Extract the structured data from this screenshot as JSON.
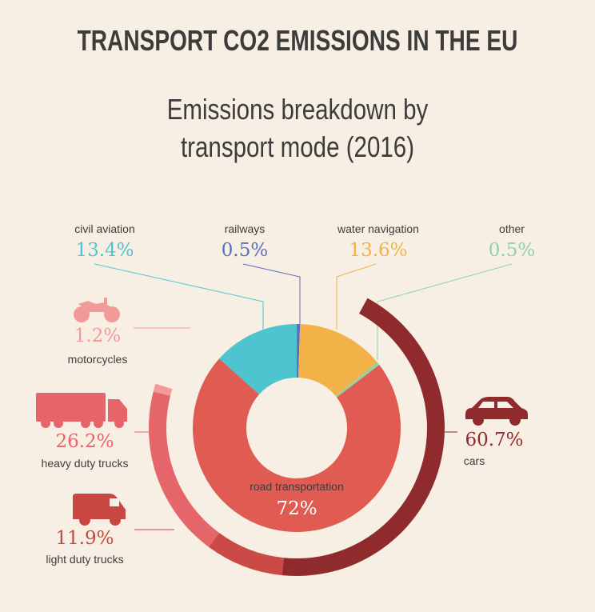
{
  "title": "TRANSPORT CO2 EMISSIONS IN THE EU",
  "subtitle_line1": "Emissions breakdown by",
  "subtitle_line2": "transport mode (2016)",
  "chart_data": [
    {
      "type": "pie",
      "title": "Emissions breakdown by transport mode (2016)",
      "categories": [
        "road transportation",
        "civil aviation",
        "railways",
        "water navigation",
        "other"
      ],
      "values": [
        72,
        13.4,
        0.5,
        13.6,
        0.5
      ],
      "value_labels": [
        "72%",
        "13.4%",
        "0.5%",
        "13.6%",
        "0.5%"
      ],
      "colors": [
        "#e05c52",
        "#4dc4cf",
        "#5b6dc2",
        "#f2b248",
        "#8bd5a6"
      ]
    },
    {
      "type": "pie",
      "title": "road transportation",
      "categories": [
        "motorcycles",
        "heavy duty trucks",
        "light duty trucks",
        "cars"
      ],
      "values": [
        1.2,
        26.2,
        11.9,
        60.7
      ],
      "value_labels": [
        "1.2%",
        "26.2%",
        "11.9%",
        "60.7%"
      ],
      "colors": [
        "#f09a9a",
        "#e5666a",
        "#cc4a45",
        "#8f2b2c"
      ]
    }
  ],
  "icons": {
    "motorcycle": "motorcycle-icon",
    "heavy_truck": "heavy-truck-icon",
    "light_truck": "van-icon",
    "car": "car-icon"
  }
}
